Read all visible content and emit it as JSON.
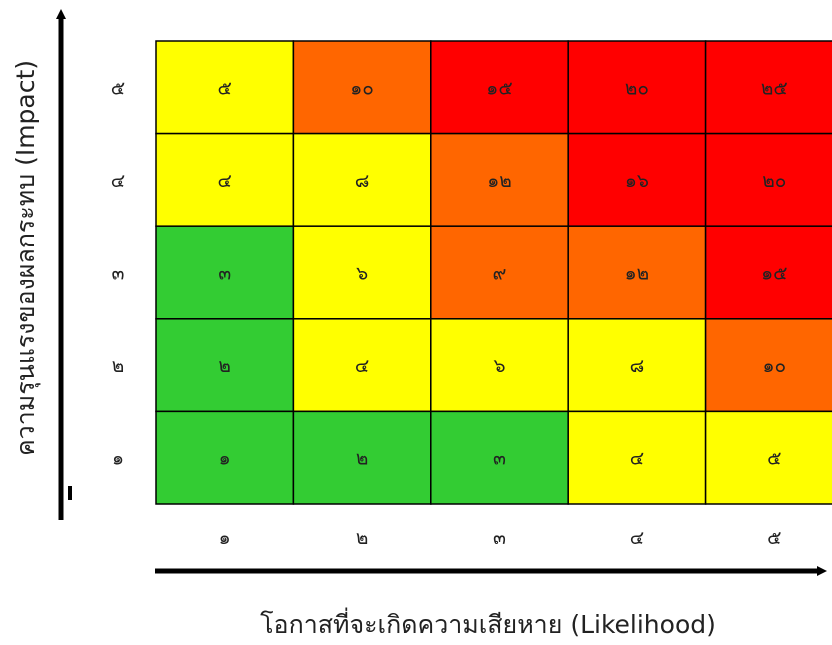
{
  "chart_data": {
    "type": "heatmap",
    "title": "",
    "xlabel": "โอกาสที่จะเกิดความเสียหาย (Likelihood)",
    "ylabel": "ความรุนแรงของผลกระทบ (Impact)",
    "x_ticks": [
      "๑",
      "๒",
      "๓",
      "๔",
      "๕"
    ],
    "y_ticks": [
      "๕",
      "๔",
      "๓",
      "๒",
      "๑"
    ],
    "x_values": [
      1,
      2,
      3,
      4,
      5
    ],
    "y_values": [
      5,
      4,
      3,
      2,
      1
    ],
    "values": [
      [
        5,
        10,
        15,
        20,
        25
      ],
      [
        4,
        8,
        12,
        16,
        20
      ],
      [
        3,
        6,
        9,
        12,
        15
      ],
      [
        2,
        4,
        6,
        8,
        10
      ],
      [
        1,
        2,
        3,
        4,
        5
      ]
    ],
    "cell_labels": [
      [
        "๕",
        "๑๐",
        "๑๕",
        "๒๐",
        "๒๕"
      ],
      [
        "๔",
        "๘",
        "๑๒",
        "๑๖",
        "๒๐"
      ],
      [
        "๓",
        "๖",
        "๙",
        "๑๒",
        "๑๕"
      ],
      [
        "๒",
        "๔",
        "๖",
        "๘",
        "๑๐"
      ],
      [
        "๑",
        "๒",
        "๓",
        "๔",
        "๕"
      ]
    ],
    "color_scale": [
      {
        "max": 3,
        "color": "#33cc33"
      },
      {
        "max": 8,
        "color": "#ffff00"
      },
      {
        "max": 12,
        "color": "#ff6600"
      },
      {
        "max": 25,
        "color": "#ff0000"
      }
    ],
    "gridlines": true,
    "legend": "none"
  }
}
